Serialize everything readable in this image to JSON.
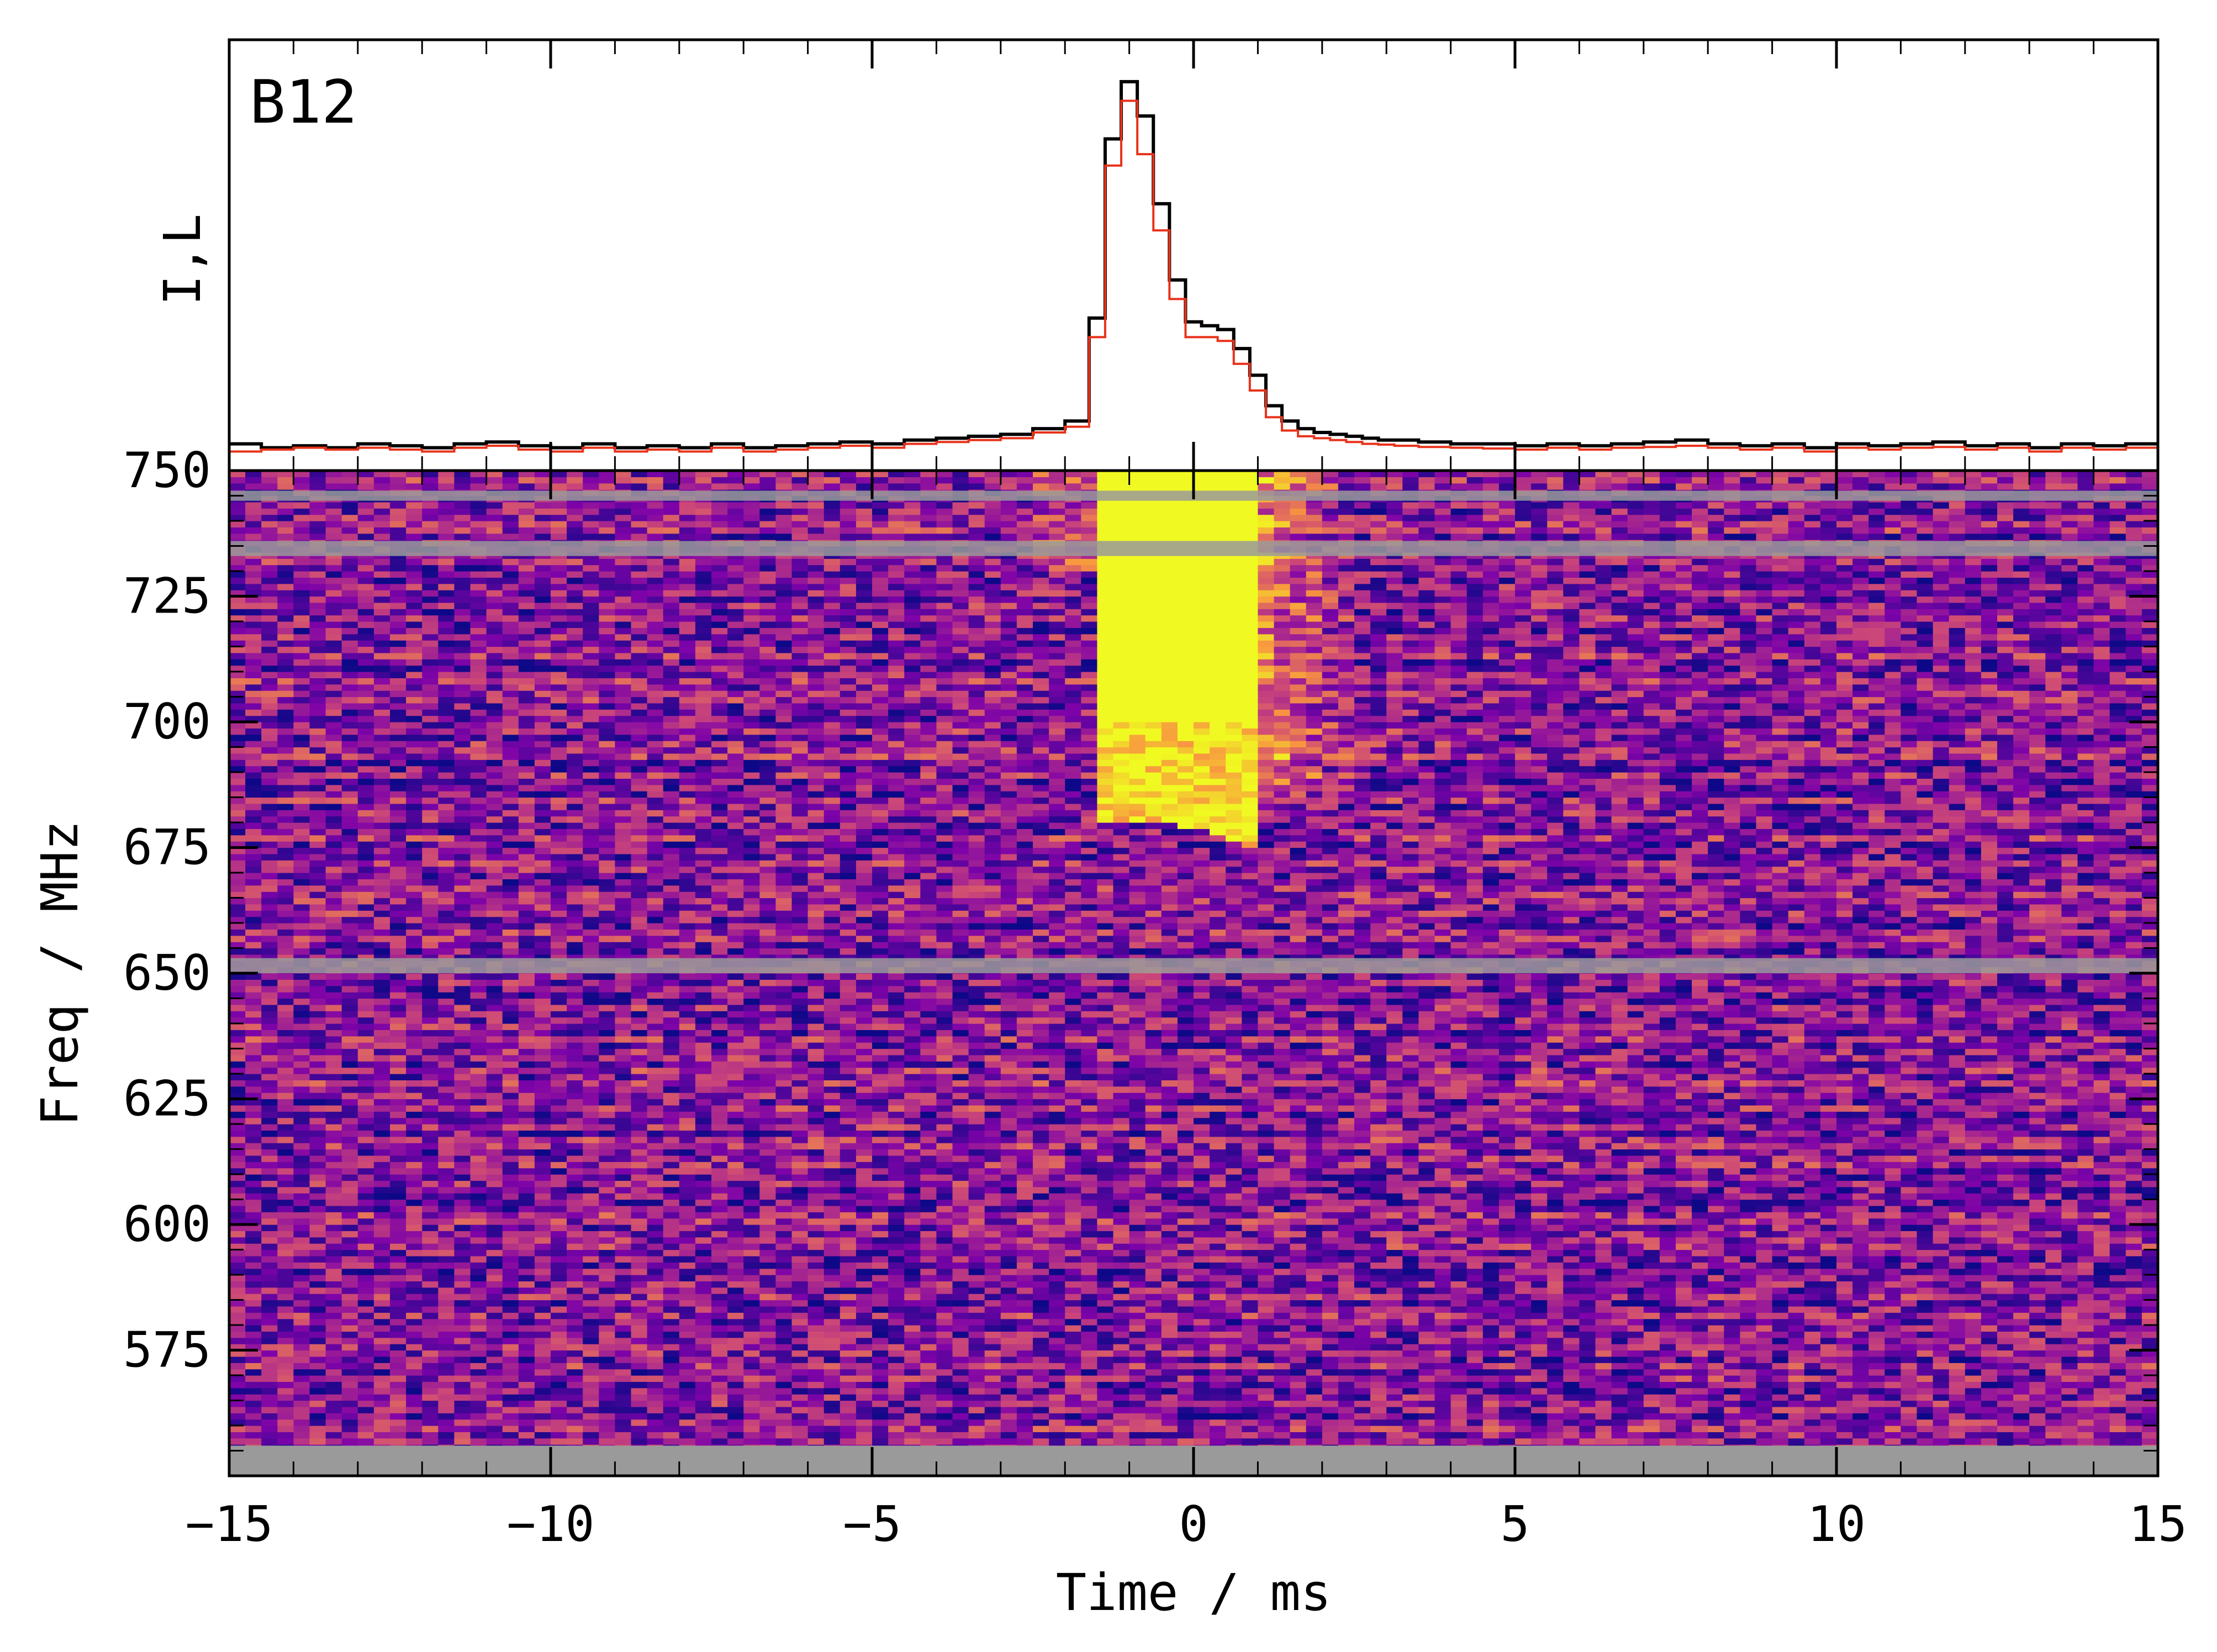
{
  "chart_data": [
    {
      "type": "line",
      "panel": "profile",
      "panel_label": "B12",
      "ylabel": "I,L",
      "x_unit_label": "Time / ms",
      "xlim": [
        -15,
        15
      ],
      "ylim": [
        -0.05,
        1.08
      ],
      "grid": false,
      "step_style": true,
      "series": [
        {
          "name": "I",
          "color": "#000000",
          "x": [
            -14.75,
            -14.25,
            -13.75,
            -13.25,
            -12.75,
            -12.25,
            -11.75,
            -11.25,
            -10.75,
            -10.25,
            -9.75,
            -9.25,
            -8.75,
            -8.25,
            -7.75,
            -7.25,
            -6.75,
            -6.25,
            -5.75,
            -5.25,
            -4.75,
            -4.25,
            -3.75,
            -3.25,
            -2.75,
            -2.25,
            -1.75,
            -1.5,
            -1.25,
            -1.0,
            -0.75,
            -0.5,
            -0.25,
            0.0,
            0.25,
            0.5,
            0.75,
            1.0,
            1.25,
            1.5,
            1.75,
            2.0,
            2.25,
            2.5,
            2.75,
            3.0,
            3.25,
            3.75,
            4.25,
            4.75,
            5.25,
            5.75,
            6.25,
            6.75,
            7.25,
            7.75,
            8.25,
            8.75,
            9.25,
            9.75,
            10.25,
            10.75,
            11.25,
            11.75,
            12.25,
            12.75,
            13.25,
            13.75,
            14.25,
            14.75
          ],
          "values": [
            0.02,
            0.01,
            0.015,
            0.01,
            0.02,
            0.015,
            0.01,
            0.02,
            0.025,
            0.015,
            0.01,
            0.02,
            0.01,
            0.015,
            0.01,
            0.02,
            0.01,
            0.015,
            0.02,
            0.025,
            0.02,
            0.03,
            0.035,
            0.04,
            0.045,
            0.06,
            0.08,
            0.35,
            0.82,
            0.97,
            0.88,
            0.65,
            0.45,
            0.34,
            0.33,
            0.32,
            0.27,
            0.2,
            0.12,
            0.08,
            0.06,
            0.05,
            0.045,
            0.04,
            0.035,
            0.03,
            0.03,
            0.025,
            0.02,
            0.02,
            0.015,
            0.02,
            0.015,
            0.02,
            0.025,
            0.03,
            0.02,
            0.015,
            0.02,
            0.01,
            0.02,
            0.015,
            0.02,
            0.025,
            0.015,
            0.02,
            0.01,
            0.02,
            0.015,
            0.02
          ]
        },
        {
          "name": "L",
          "color": "#e8321a",
          "x": [
            -14.75,
            -14.25,
            -13.75,
            -13.25,
            -12.75,
            -12.25,
            -11.75,
            -11.25,
            -10.75,
            -10.25,
            -9.75,
            -9.25,
            -8.75,
            -8.25,
            -7.75,
            -7.25,
            -6.75,
            -6.25,
            -5.75,
            -5.25,
            -4.75,
            -4.25,
            -3.75,
            -3.25,
            -2.75,
            -2.25,
            -1.75,
            -1.5,
            -1.25,
            -1.0,
            -0.75,
            -0.5,
            -0.25,
            0.0,
            0.25,
            0.5,
            0.75,
            1.0,
            1.25,
            1.5,
            1.75,
            2.0,
            2.25,
            2.5,
            2.75,
            3.0,
            3.25,
            3.75,
            4.25,
            4.75,
            5.25,
            5.75,
            6.25,
            6.75,
            7.25,
            7.75,
            8.25,
            8.75,
            9.25,
            9.75,
            10.25,
            10.75,
            11.25,
            11.75,
            12.25,
            12.75,
            13.25,
            13.75,
            14.25,
            14.75
          ],
          "values": [
            0.0,
            0.005,
            0.01,
            0.005,
            0.01,
            0.005,
            0.0,
            0.01,
            0.015,
            0.005,
            0.0,
            0.01,
            0.0,
            0.005,
            0.0,
            0.01,
            0.0,
            0.005,
            0.01,
            0.015,
            0.01,
            0.02,
            0.025,
            0.03,
            0.035,
            0.05,
            0.065,
            0.3,
            0.75,
            0.92,
            0.78,
            0.58,
            0.4,
            0.3,
            0.3,
            0.29,
            0.23,
            0.16,
            0.09,
            0.055,
            0.04,
            0.035,
            0.03,
            0.025,
            0.02,
            0.018,
            0.015,
            0.012,
            0.01,
            0.008,
            0.005,
            0.01,
            0.005,
            0.01,
            0.012,
            0.015,
            0.01,
            0.005,
            0.01,
            0.0,
            0.01,
            0.005,
            0.01,
            0.012,
            0.005,
            0.01,
            0.0,
            0.01,
            0.005,
            0.01
          ]
        }
      ]
    },
    {
      "type": "heatmap",
      "panel": "dynamic_spectrum",
      "xlabel": "Time / ms",
      "ylabel": "Freq / MHz",
      "xlim": [
        -15,
        15
      ],
      "ylim": [
        550,
        750
      ],
      "x_ticks": [
        -15,
        -10,
        -5,
        0,
        5,
        10,
        15
      ],
      "x_tick_labels": [
        "−15",
        "−10",
        "−5",
        "0",
        "5",
        "10",
        "15"
      ],
      "y_ticks": [
        575,
        600,
        625,
        650,
        675,
        700,
        725,
        750
      ],
      "y_tick_labels": [
        "575",
        "600",
        "625",
        "650",
        "675",
        "700",
        "725",
        "750"
      ],
      "colormap": "plasma",
      "masked_channel_color": "#9a9a9a",
      "masked_bands_mhz": [
        [
          550,
          556
        ],
        [
          733,
          736
        ],
        [
          650,
          653
        ],
        [
          744,
          746
        ]
      ],
      "burst": {
        "time_range_ms": [
          -1.5,
          1.1
        ],
        "freq_range_mhz": [
          668,
          750
        ],
        "saturated_color": "#f0f921",
        "drift": "emission extends to lower frequencies at later times"
      },
      "grid": false
    }
  ]
}
